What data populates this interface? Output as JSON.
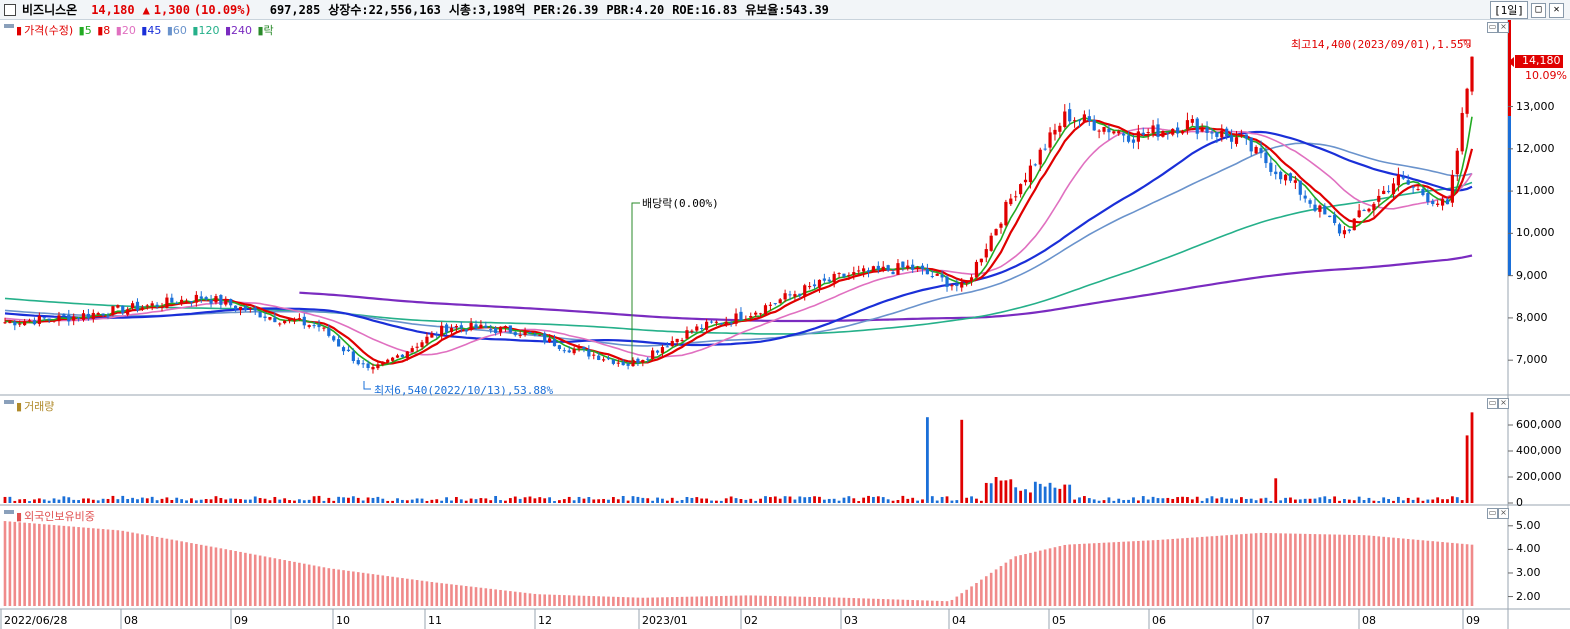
{
  "header": {
    "name": "비즈니스온",
    "price": "14,180",
    "arrow": "▲",
    "change": "1,300",
    "change_pct": "(10.09%)",
    "volume": "697,285",
    "shares": "상장수:22,556,163",
    "mcap": "시총:3,198억",
    "per": "PER:26.39",
    "pbr": "PBR:4.20",
    "roe": "ROE:16.83",
    "reserve": "유보율:543.39",
    "period": "1일"
  },
  "legend_price": {
    "label": "가격(수정)",
    "ma": [
      {
        "label": "5",
        "color": "#22aa22"
      },
      {
        "label": "8",
        "color": "#e00000"
      },
      {
        "label": "20",
        "color": "#e070c0"
      },
      {
        "label": "45",
        "color": "#1a2fd8"
      },
      {
        "label": "60",
        "color": "#6a93cc"
      },
      {
        "label": "120",
        "color": "#25b08a"
      },
      {
        "label": "240",
        "color": "#7a2bc0"
      },
      {
        "label": "락",
        "color": "#2a8a2a"
      }
    ]
  },
  "legend_volume": "거래량",
  "legend_foreign": "외국인보유비중",
  "annotations": {
    "high": "최고14,400(2023/09/01),1.55%",
    "low": "최저6,540(2022/10/13),53.88%",
    "dividend": "배당락(0.00%)",
    "last_price": "14,180",
    "last_pct": "10.09%"
  },
  "chart_data": [
    {
      "type": "line",
      "title": "",
      "x": [
        "2022/06/28",
        "08",
        "09",
        "10",
        "11",
        "12",
        "2023/01",
        "02",
        "03",
        "04",
        "05",
        "06",
        "07",
        "08",
        "09"
      ],
      "y_ticks": [
        "13,000",
        "12,000",
        "11,000",
        "10,000",
        "9,000",
        "8,000",
        "7,000"
      ],
      "ylim": [
        6200,
        15000
      ],
      "close_approx": [
        [
          "2022/06/28",
          7900
        ],
        [
          "2022/07/15",
          8000
        ],
        [
          "2022/08/10",
          8300
        ],
        [
          "2022/08/25",
          8500
        ],
        [
          "2022/09/15",
          8000
        ],
        [
          "2022/09/28",
          7800
        ],
        [
          "2022/10/13",
          6700
        ],
        [
          "2022/10/25",
          7300
        ],
        [
          "2022/11/05",
          7800
        ],
        [
          "2022/11/25",
          7700
        ],
        [
          "2022/12/10",
          7300
        ],
        [
          "2022/12/28",
          6900
        ],
        [
          "2023/01/15",
          7700
        ],
        [
          "2023/02/01",
          8100
        ],
        [
          "2023/02/15",
          8600
        ],
        [
          "2023/03/01",
          9000
        ],
        [
          "2023/03/20",
          9200
        ],
        [
          "2023/04/05",
          8700
        ],
        [
          "2023/04/20",
          11000
        ],
        [
          "2023/05/05",
          12800
        ],
        [
          "2023/05/25",
          12300
        ],
        [
          "2023/06/10",
          12600
        ],
        [
          "2023/06/25",
          12200
        ],
        [
          "2023/07/10",
          11200
        ],
        [
          "2023/07/25",
          10000
        ],
        [
          "2023/08/10",
          11300
        ],
        [
          "2023/08/25",
          10600
        ],
        [
          "2023/09/01",
          14180
        ]
      ],
      "series": [
        {
          "name": "240",
          "color": "#7a2bc0"
        },
        {
          "name": "120",
          "color": "#25b08a"
        },
        {
          "name": "60",
          "color": "#6a93cc"
        },
        {
          "name": "45",
          "color": "#1a2fd8"
        },
        {
          "name": "20",
          "color": "#e070c0"
        },
        {
          "name": "8",
          "color": "#e00000"
        },
        {
          "name": "5",
          "color": "#22aa22"
        }
      ]
    },
    {
      "type": "bar",
      "title": "",
      "y_ticks": [
        "600,000",
        "400,000",
        "200,000",
        "0"
      ],
      "ylim": [
        0,
        700000
      ],
      "spikes": [
        {
          "date": "2023/03/25",
          "value": 660000,
          "color": "#1a6fd8"
        },
        {
          "date": "2023/04/05",
          "value": 640000,
          "color": "#e00000"
        },
        {
          "date": "2023/04/15",
          "value": 200000,
          "color": "#e00000"
        },
        {
          "date": "2023/07/05",
          "value": 190000,
          "color": "#e00000"
        },
        {
          "date": "2023/08/30",
          "value": 520000,
          "color": "#e00000"
        },
        {
          "date": "2023/09/01",
          "value": 697285,
          "color": "#e00000"
        }
      ]
    },
    {
      "type": "bar",
      "title": "",
      "y_ticks": [
        "5.00",
        "4.00",
        "3.00",
        "2.00"
      ],
      "ylim": [
        1.6,
        5.5
      ],
      "values_approx": [
        [
          "2022/06/28",
          5.2
        ],
        [
          "2022/08/01",
          4.8
        ],
        [
          "2022/09/01",
          4.0
        ],
        [
          "2022/10/01",
          3.2
        ],
        [
          "2022/11/01",
          2.6
        ],
        [
          "2022/12/01",
          2.1
        ],
        [
          "2023/01/01",
          1.95
        ],
        [
          "2023/02/01",
          2.05
        ],
        [
          "2023/03/01",
          1.95
        ],
        [
          "2023/04/01",
          1.8
        ],
        [
          "2023/04/20",
          3.7
        ],
        [
          "2023/05/05",
          4.2
        ],
        [
          "2023/06/01",
          4.4
        ],
        [
          "2023/07/01",
          4.7
        ],
        [
          "2023/08/01",
          4.6
        ],
        [
          "2023/09/01",
          4.2
        ]
      ],
      "color": "#f08a8a"
    }
  ]
}
